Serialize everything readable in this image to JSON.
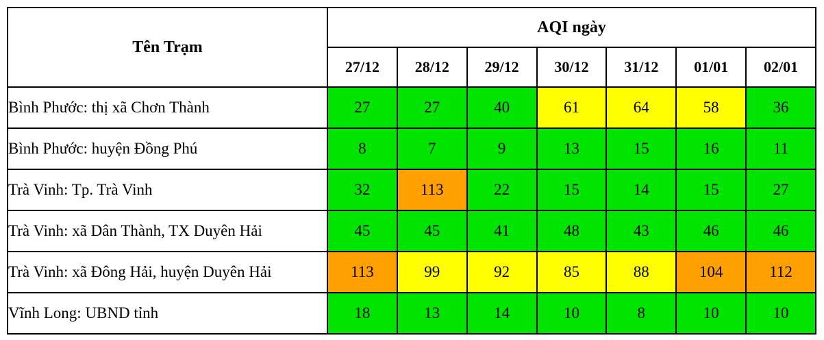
{
  "chart_data": {
    "type": "table",
    "station_column_header": "Tên Trạm",
    "group_header": "AQI ngày",
    "dates": [
      "27/12",
      "28/12",
      "29/12",
      "30/12",
      "31/12",
      "01/01",
      "02/01"
    ],
    "rows": [
      {
        "station": "Bình Phước: thị xã Chơn Thành",
        "values": [
          27,
          27,
          40,
          61,
          64,
          58,
          36
        ],
        "levels": [
          "green",
          "green",
          "green",
          "yellow",
          "yellow",
          "yellow",
          "green"
        ]
      },
      {
        "station": "Bình Phước: huyện Đồng Phú",
        "values": [
          8,
          7,
          9,
          13,
          15,
          16,
          11
        ],
        "levels": [
          "green",
          "green",
          "green",
          "green",
          "green",
          "green",
          "green"
        ]
      },
      {
        "station": "Trà Vinh: Tp. Trà Vinh",
        "values": [
          32,
          113,
          22,
          15,
          14,
          15,
          27
        ],
        "levels": [
          "green",
          "orange",
          "green",
          "green",
          "green",
          "green",
          "green"
        ]
      },
      {
        "station": "Trà Vinh: xã Dân Thành, TX Duyên Hải",
        "values": [
          45,
          45,
          41,
          48,
          43,
          46,
          46
        ],
        "levels": [
          "green",
          "green",
          "green",
          "green",
          "green",
          "green",
          "green"
        ]
      },
      {
        "station": "Trà Vinh: xã Đông Hải, huyện Duyên Hải",
        "values": [
          113,
          99,
          92,
          85,
          88,
          104,
          112
        ],
        "levels": [
          "orange",
          "yellow",
          "yellow",
          "yellow",
          "yellow",
          "orange",
          "orange"
        ]
      },
      {
        "station": "Vĩnh Long: UBND tỉnh",
        "values": [
          18,
          13,
          14,
          10,
          8,
          10,
          10
        ],
        "levels": [
          "green",
          "green",
          "green",
          "green",
          "green",
          "green",
          "green"
        ]
      }
    ],
    "level_colors": {
      "green": "#00E400",
      "yellow": "#FFFF00",
      "orange": "#FFA000"
    },
    "color_rule": "AQI <= 50 green, 51-100 yellow, > 100 orange"
  }
}
